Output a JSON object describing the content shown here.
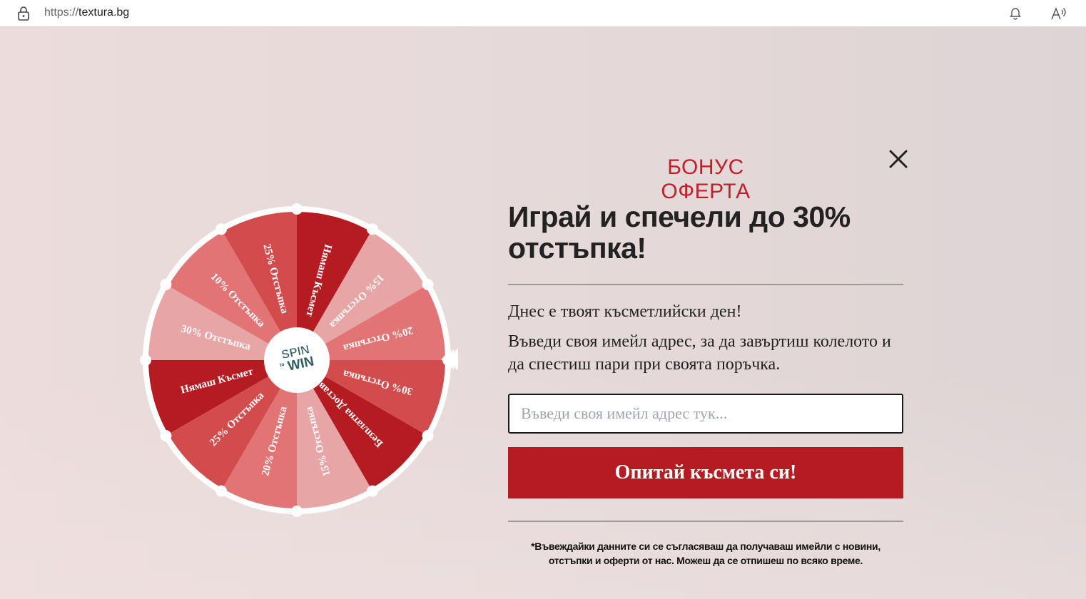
{
  "browser": {
    "url_protocol": "https://",
    "url_host": "textura.bg"
  },
  "wheel": {
    "center_logo_top": "SPIN",
    "center_logo_mid": "to",
    "center_logo_bottom": "WIN",
    "segments": [
      {
        "label": "Нямаш Късмет",
        "color": "#b51c22"
      },
      {
        "label": "15% Отстъпка",
        "color": "#e8a5a5"
      },
      {
        "label": "20% Отстъпка",
        "color": "#e37475"
      },
      {
        "label": "30% Отстъпка",
        "color": "#d34c4d"
      },
      {
        "label": "Безплатна Доставка",
        "color": "#b51c22"
      },
      {
        "label": "15% Отстъпка",
        "color": "#e8a5a5"
      },
      {
        "label": "20% Отстъпка",
        "color": "#e37475"
      },
      {
        "label": "25% Отстъпка",
        "color": "#d34c4d"
      },
      {
        "label": "Нямаш Късмет",
        "color": "#b51c22"
      },
      {
        "label": "30% Отстъпка",
        "color": "#e8a5a5"
      },
      {
        "label": "10% Отстъпка",
        "color": "#e37475"
      },
      {
        "label": "25% Отстъпка",
        "color": "#d34c4d"
      }
    ]
  },
  "popup": {
    "eyebrow": "БОНУС ОФЕРТА",
    "headline": "Играй и спечели до 30% отстъпка!",
    "lucky_line": "Днес е твоят късметлийски ден!",
    "instructions": "Въведи своя имейл адрес, за да завъртиш колелото и да спестиш пари при своята поръчка.",
    "email_placeholder": "Въведи своя имейл адрес тук...",
    "submit_label": "Опитай късмета си!",
    "disclaimer": "*Въвеждайки данните си се съгласяваш да получаваш имейли с новини, отстъпки и оферти от нас. Можеш да се отпишеш по всяко време."
  },
  "colors": {
    "accent": "#b51c22",
    "eyebrow": "#c0202a"
  }
}
